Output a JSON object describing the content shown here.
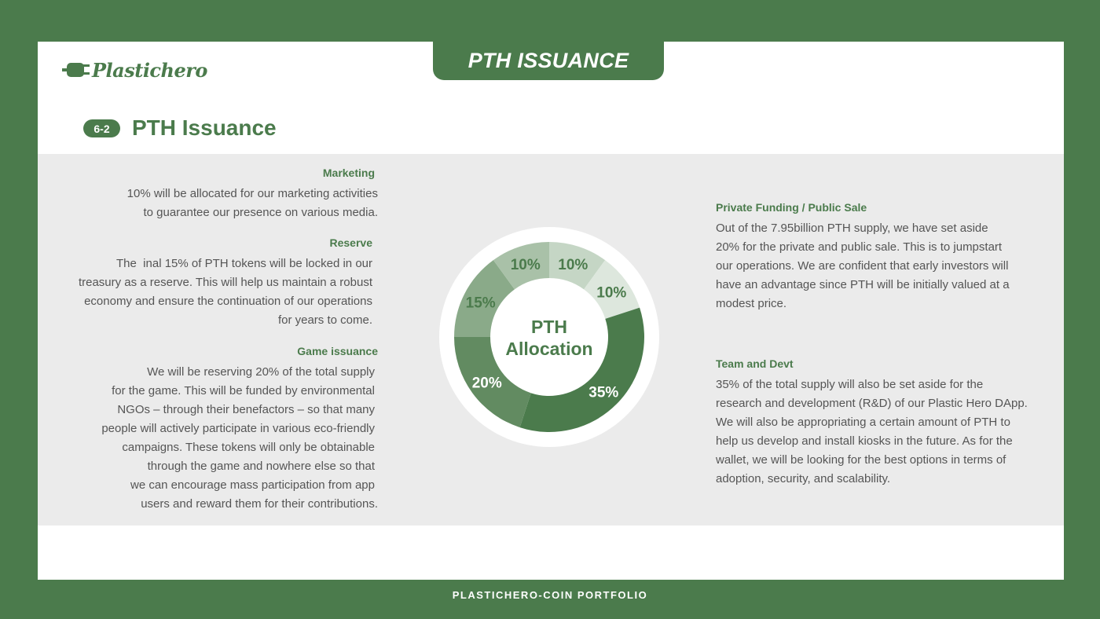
{
  "header": {
    "tab_title": "PTH ISSUANCE",
    "logo_text": "Plastichero"
  },
  "section": {
    "badge": "6-2",
    "title": "PTH Issuance"
  },
  "left": {
    "marketing": {
      "title": "Marketing",
      "lines": [
        "10% will be allocated for our marketing activities",
        "to guarantee our presence on various media."
      ]
    },
    "reserve": {
      "title": "Reserve",
      "lines": [
        "The  inal 15% of PTH tokens will be locked in our",
        "treasury as a reserve. This will help us maintain a robust",
        "economy and ensure the continuation of our operations",
        "for years to come."
      ]
    },
    "game": {
      "title": "Game issuance",
      "lines": [
        "We will be reserving 20% of the total supply",
        "for the game. This will be funded by environmental",
        "NGOs – through their benefactors – so that many",
        "people will actively participate in various eco-friendly",
        "campaigns. These tokens will only be obtainable",
        "through the game and nowhere else so that",
        "we can encourage mass participation from app",
        "users and reward them for their contributions."
      ]
    }
  },
  "right": {
    "private": {
      "title": "Private Funding / Public Sale",
      "lines": [
        "Out of the 7.95billion PTH supply, we have set aside",
        "20% for the private and public sale. This is to jumpstart",
        "our operations. We are confident that early investors will",
        "have an advantage since PTH will be initially valued at a",
        "modest price."
      ]
    },
    "team": {
      "title": "Team and Devt",
      "lines": [
        "35% of the total supply will also be set aside for the",
        "research and development (R&D) of our Plastic Hero DApp.",
        "We will also be appropriating a certain amount of PTH to",
        "help us develop and install kiosks in the future. As for the",
        "wallet, we will be looking for the best options in terms of",
        "adoption, security, and scalability."
      ]
    }
  },
  "chart_data": {
    "type": "pie",
    "center_label": [
      "PTH",
      "Allocation"
    ],
    "values": [
      10,
      10,
      35,
      20,
      15,
      10
    ],
    "labels": [
      "10%",
      "10%",
      "35%",
      "20%",
      "15%",
      "10%"
    ],
    "colors": [
      "#c5d6c5",
      "#dde7dd",
      "#4b7b4c",
      "#628b61",
      "#8aaa89",
      "#a9c1a8"
    ],
    "label_colors": [
      "#4b7b4c",
      "#4b7b4c",
      "#ffffff",
      "#ffffff",
      "#4b7b4c",
      "#4b7b4c"
    ]
  },
  "footer": {
    "text": "PLASTICHERO-COIN PORTFOLIO"
  }
}
